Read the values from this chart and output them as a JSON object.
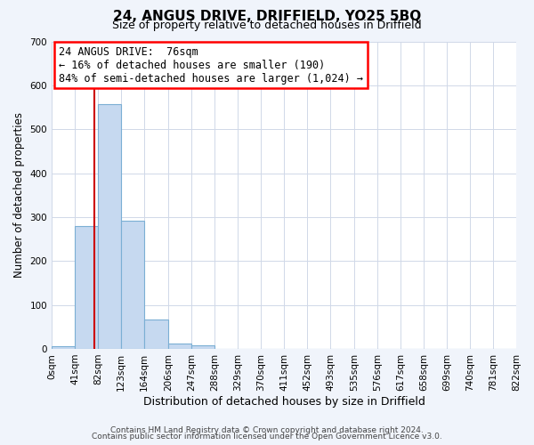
{
  "title1": "24, ANGUS DRIVE, DRIFFIELD, YO25 5BQ",
  "title2": "Size of property relative to detached houses in Driffield",
  "xlabel": "Distribution of detached houses by size in Driffield",
  "ylabel": "Number of detached properties",
  "bin_edges": [
    0,
    41,
    82,
    123,
    164,
    206,
    247,
    288,
    329,
    370,
    411,
    452,
    493,
    535,
    576,
    617,
    658,
    699,
    740,
    781,
    822
  ],
  "bin_labels": [
    "0sqm",
    "41sqm",
    "82sqm",
    "123sqm",
    "164sqm",
    "206sqm",
    "247sqm",
    "288sqm",
    "329sqm",
    "370sqm",
    "411sqm",
    "452sqm",
    "493sqm",
    "535sqm",
    "576sqm",
    "617sqm",
    "658sqm",
    "699sqm",
    "740sqm",
    "781sqm",
    "822sqm"
  ],
  "bar_heights": [
    7,
    280,
    558,
    291,
    67,
    13,
    9,
    0,
    0,
    0,
    0,
    0,
    0,
    0,
    0,
    0,
    0,
    0,
    0,
    0
  ],
  "bar_color": "#c6d9f0",
  "bar_edgecolor": "#7bafd4",
  "vline_x": 76,
  "vline_color": "#cc0000",
  "ylim": [
    0,
    700
  ],
  "yticks": [
    0,
    100,
    200,
    300,
    400,
    500,
    600,
    700
  ],
  "ann_line1": "24 ANGUS DRIVE:  76sqm",
  "ann_line2": "← 16% of detached houses are smaller (190)",
  "ann_line3": "84% of semi-detached houses are larger (1,024) →",
  "footer1": "Contains HM Land Registry data © Crown copyright and database right 2024.",
  "footer2": "Contains public sector information licensed under the Open Government Licence v3.0.",
  "outer_bg": "#f0f4fb",
  "plot_bg": "#ffffff",
  "grid_color": "#d0d8e8",
  "title1_fontsize": 11,
  "title2_fontsize": 9,
  "xlabel_fontsize": 9,
  "ylabel_fontsize": 8.5,
  "tick_fontsize": 7.5,
  "footer_fontsize": 6.5,
  "ann_fontsize": 8.5
}
